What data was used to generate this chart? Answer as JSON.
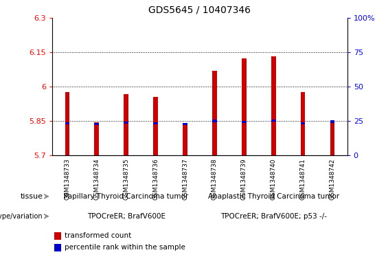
{
  "title": "GDS5645 / 10407346",
  "samples": [
    "GSM1348733",
    "GSM1348734",
    "GSM1348735",
    "GSM1348736",
    "GSM1348737",
    "GSM1348738",
    "GSM1348739",
    "GSM1348740",
    "GSM1348741",
    "GSM1348742"
  ],
  "red_values": [
    5.975,
    5.843,
    5.965,
    5.955,
    5.836,
    6.068,
    6.122,
    6.132,
    5.975,
    5.847
  ],
  "blue_values": [
    5.84,
    5.836,
    5.843,
    5.84,
    5.836,
    5.85,
    5.845,
    5.851,
    5.84,
    5.847
  ],
  "ymin": 5.7,
  "ymax": 6.3,
  "yticks": [
    5.7,
    5.85,
    6.0,
    6.15,
    6.3
  ],
  "ytick_labels": [
    "5.7",
    "5.85",
    "6",
    "6.15",
    "6.3"
  ],
  "y2min": 0,
  "y2max": 100,
  "y2ticks": [
    0,
    25,
    50,
    75,
    100
  ],
  "y2tick_labels": [
    "0",
    "25",
    "50",
    "75",
    "100%"
  ],
  "grid_lines": [
    5.85,
    6.0,
    6.15
  ],
  "tissue_group1": "Papillary Thyroid Carcinoma tumor",
  "tissue_group2": "Anaplastic Thyroid Carcinoma tumor",
  "genotype_group1": "TPOCreER; BrafV600E",
  "genotype_group2": "TPOCreER; BrafV600E; p53 -/-",
  "tissue_color": "#66DD66",
  "genotype_color": "#EE88EE",
  "bar_color_red": "#CC0000",
  "bar_color_blue": "#0000CC",
  "red_bar_width": 0.15,
  "blue_bar_width": 0.15,
  "blue_bar_height": 0.01,
  "split_idx": 5,
  "legend_red": "transformed count",
  "legend_blue": "percentile rank within the sample",
  "sample_box_color": "#C8C8C8",
  "plot_bg": "#FFFFFF"
}
